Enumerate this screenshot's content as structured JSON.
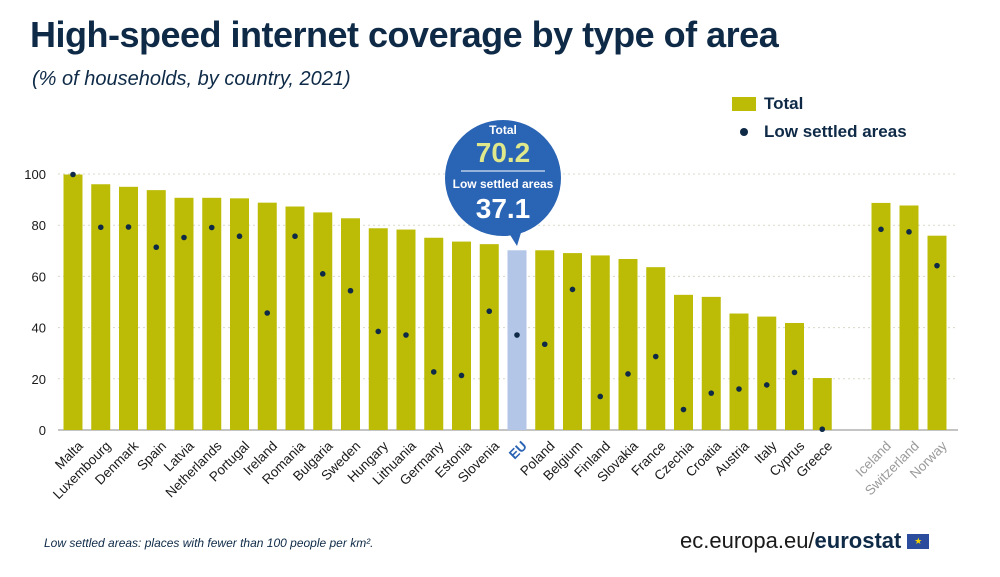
{
  "title": "High-speed internet coverage by type of area",
  "subtitle": "(% of households, by country, 2021)",
  "legend": {
    "total": "Total",
    "low": "Low settled areas"
  },
  "callout": {
    "total_label": "Total",
    "total_value": "70.2",
    "low_label": "Low settled areas",
    "low_value": "37.1"
  },
  "footnote": "Low settled areas: places with fewer than 100 people per km².",
  "brand": {
    "domain": "ec.europa.eu/",
    "name": "eurostat",
    "flag_icon": "eu-flag-icon"
  },
  "colors": {
    "bar": "#bcbc06",
    "eu_bar": "#b3c6e8",
    "dot": "#0e2a47",
    "callout": "#2a64b4",
    "eu_label": "#2a64b4",
    "efta_label": "#9a9a9a",
    "axis_text": "#1a1a1a"
  },
  "chart_data": {
    "type": "bar",
    "ylim": [
      0,
      100
    ],
    "yticks": [
      0,
      20,
      40,
      60,
      80,
      100
    ],
    "grid": true,
    "legend_position": "top-right",
    "categories": [
      "Malta",
      "Luxembourg",
      "Denmark",
      "Spain",
      "Latvia",
      "Netherlands",
      "Portugal",
      "Ireland",
      "Romania",
      "Bulgaria",
      "Sweden",
      "Hungary",
      "Lithuania",
      "Germany",
      "Estonia",
      "Slovenia",
      "EU",
      "Poland",
      "Belgium",
      "Finland",
      "Slovakia",
      "France",
      "Czechia",
      "Croatia",
      "Austria",
      "Italy",
      "Cyprus",
      "Greece",
      "Iceland",
      "Switzerland",
      "Norway"
    ],
    "groups": [
      "eu_member",
      "eu_member",
      "eu_member",
      "eu_member",
      "eu_member",
      "eu_member",
      "eu_member",
      "eu_member",
      "eu_member",
      "eu_member",
      "eu_member",
      "eu_member",
      "eu_member",
      "eu_member",
      "eu_member",
      "eu_member",
      "eu",
      "eu_member",
      "eu_member",
      "eu_member",
      "eu_member",
      "eu_member",
      "eu_member",
      "eu_member",
      "eu_member",
      "eu_member",
      "eu_member",
      "eu_member",
      "efta",
      "efta",
      "efta"
    ],
    "series": [
      {
        "name": "Total",
        "values": [
          99.8,
          96.0,
          95.0,
          93.7,
          90.7,
          90.7,
          90.5,
          88.8,
          87.3,
          85.0,
          82.7,
          78.8,
          78.3,
          75.1,
          73.6,
          72.6,
          70.2,
          70.2,
          69.1,
          68.2,
          66.8,
          63.6,
          52.8,
          52.0,
          45.5,
          44.3,
          41.8,
          20.3,
          88.7,
          87.7,
          75.9
        ]
      },
      {
        "name": "Low settled areas",
        "values": [
          99.8,
          79.2,
          79.3,
          71.4,
          75.2,
          79.1,
          75.7,
          45.7,
          75.7,
          61.0,
          54.4,
          38.5,
          37.1,
          22.7,
          21.3,
          46.4,
          37.1,
          33.5,
          54.9,
          13.1,
          21.9,
          28.7,
          8.0,
          14.4,
          16.0,
          17.6,
          22.5,
          0.3,
          78.4,
          77.4,
          64.2
        ]
      }
    ]
  }
}
